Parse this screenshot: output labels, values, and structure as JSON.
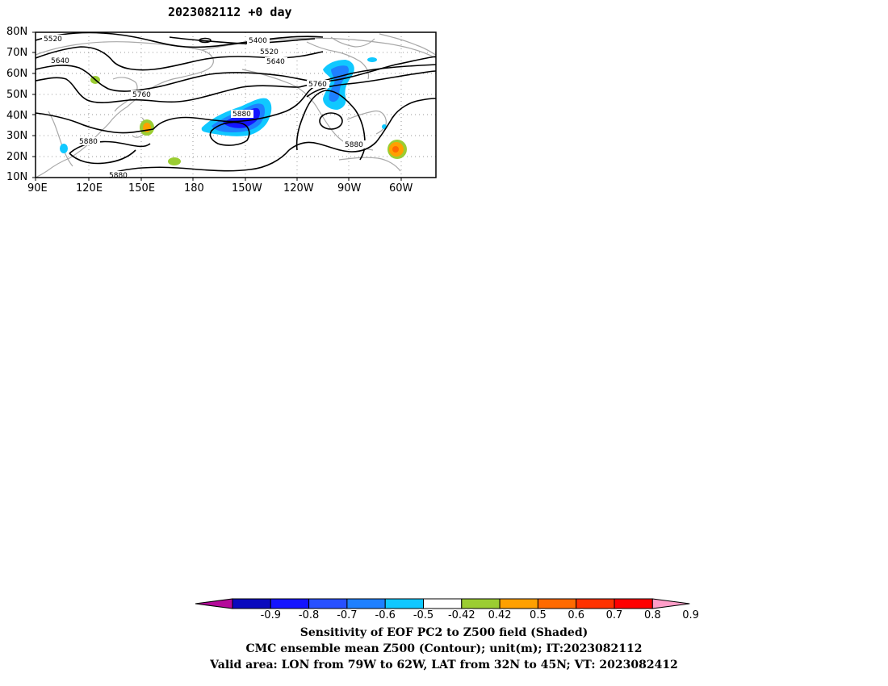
{
  "title": "2023082112 +0 day",
  "map": {
    "lat_labels": [
      "80N",
      "70N",
      "60N",
      "50N",
      "40N",
      "30N",
      "20N",
      "10N"
    ],
    "lon_labels": [
      "90E",
      "120E",
      "150E",
      "180",
      "150W",
      "120W",
      "90W",
      "60W"
    ],
    "contour_labels": [
      "5520",
      "5400",
      "5520",
      "5640",
      "5640",
      "5760",
      "5760",
      "5880",
      "5880",
      "5880",
      "5880"
    ]
  },
  "colorbar": {
    "ticks": [
      "-0.9",
      "-0.8",
      "-0.7",
      "-0.6",
      "-0.5",
      "-0.42",
      "0.42",
      "0.5",
      "0.6",
      "0.7",
      "0.8",
      "0.9"
    ],
    "colors": [
      "#b40a9a",
      "#0a0abe",
      "#1414ff",
      "#2850ff",
      "#1e80ff",
      "#10c8ff",
      "#ffffff",
      "#9bcd32",
      "#ffa000",
      "#ff6a00",
      "#ff3200",
      "#ff0000",
      "#ff9ec8"
    ]
  },
  "caption": {
    "line1": "Sensitivity of EOF PC2 to Z500 field (Shaded)",
    "line2": "CMC ensemble mean Z500 (Contour); unit(m); IT:2023082112",
    "line3": "Valid area: LON from 79W to 62W, LAT from 32N to 45N; VT: 2023082412"
  }
}
